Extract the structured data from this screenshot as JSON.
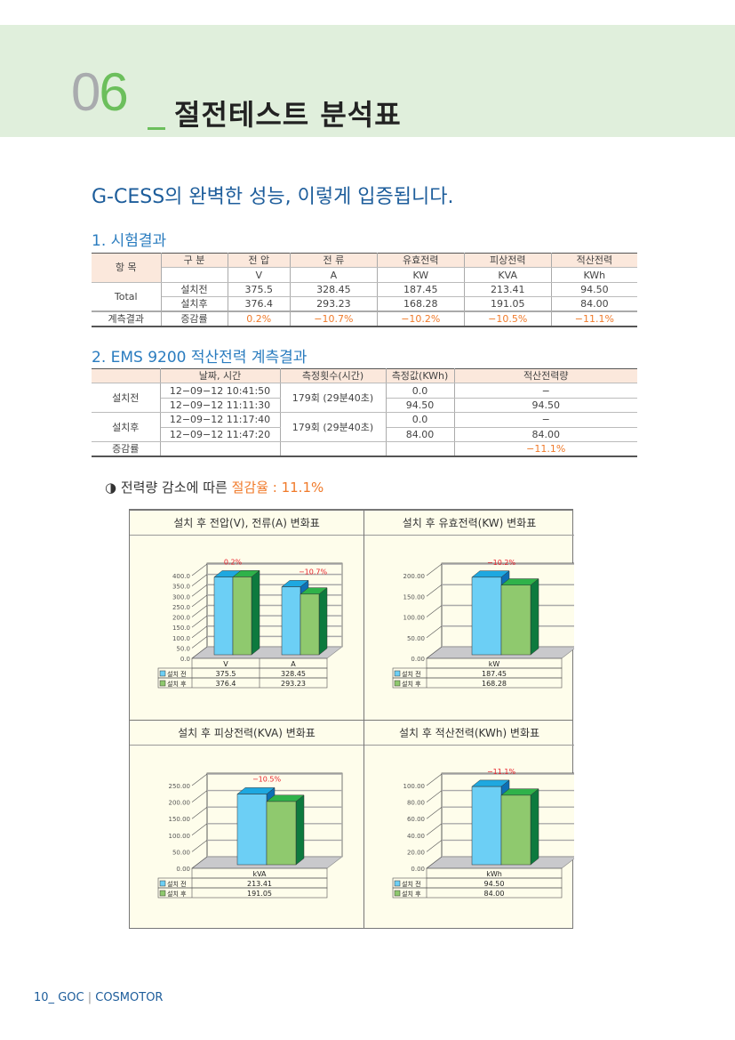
{
  "header": {
    "num_first": "0",
    "num_second": "6",
    "title": "절전테스트 분석표"
  },
  "subheading": "G-CESS의 완벽한 성능, 이렇게 입증됩니다.",
  "section1": {
    "title": "1. 시험결과",
    "head1": [
      "항 목",
      "구 분",
      "전 압",
      "전 류",
      "유효전력",
      "피상전력",
      "적산전력"
    ],
    "units": [
      "V",
      "A",
      "KW",
      "KVA",
      "KWh"
    ],
    "total_label": "Total",
    "rows": [
      {
        "label": "설치전",
        "values": [
          "375.5",
          "328.45",
          "187.45",
          "213.41",
          "94.50"
        ]
      },
      {
        "label": "설치후",
        "values": [
          "376.4",
          "293.23",
          "168.28",
          "191.05",
          "84.00"
        ]
      }
    ],
    "result_label": "계측결과",
    "change_label": "증감률",
    "changes": [
      "0.2%",
      "−10.7%",
      "−10.2%",
      "−10.5%",
      "−11.1%"
    ]
  },
  "section2": {
    "title": "2. EMS 9200 적산전력 계측결과",
    "head": [
      "",
      "날짜, 시간",
      "측정횟수(시간)",
      "측정값(KWh)",
      "적산전력량"
    ],
    "groups": [
      {
        "label": "설치전",
        "count": "179회 (29분40초)",
        "rows": [
          [
            "12−09−12 10:41:50",
            "0.0",
            "−"
          ],
          [
            "12−09−12 11:11:30",
            "94.50",
            "94.50"
          ]
        ]
      },
      {
        "label": "설치후",
        "count": "179회 (29분40초)",
        "rows": [
          [
            "12−09−12 11:17:40",
            "0.0",
            "−"
          ],
          [
            "12−09−12 11:47:20",
            "84.00",
            "84.00"
          ]
        ]
      }
    ],
    "change_label": "증감률",
    "change": "−11.1%"
  },
  "rate": {
    "icon": "half-circle-icon",
    "text": "전력량 감소에 따른 ",
    "highlight": "절감율 : 11.1%"
  },
  "colors": {
    "before": "#6ccff5",
    "before_top": "#1ea8e0",
    "before_side": "#0d6fb5",
    "after": "#8fc96e",
    "after_top": "#2fb24a",
    "after_side": "#0d7a3e",
    "label": "#e8202a",
    "accent": "#f07a2a"
  },
  "chart_data": [
    {
      "type": "bar",
      "title": "설치 후 전압(V), 전류(A) 변화표",
      "categories": [
        "V",
        "A"
      ],
      "series": [
        {
          "name": "설치 전",
          "values": [
            375.5,
            328.45
          ],
          "labels": [
            "375.5",
            "328.45"
          ]
        },
        {
          "name": "설치 후",
          "values": [
            376.4,
            293.23
          ],
          "labels": [
            "376.4",
            "293.23"
          ]
        }
      ],
      "annotations": [
        "0.2%",
        "−10.7%"
      ],
      "ylim": [
        0,
        400
      ],
      "ticks": [
        "0.0",
        "50.0",
        "100.0",
        "150.0",
        "200.0",
        "250.0",
        "300.0",
        "350.0",
        "400.0"
      ],
      "grid": true
    },
    {
      "type": "bar",
      "title": "설치 후 유효전력(KW) 변화표",
      "categories": [
        "kW"
      ],
      "series": [
        {
          "name": "설치 전",
          "values": [
            187.45
          ],
          "labels": [
            "187.45"
          ]
        },
        {
          "name": "설치 후",
          "values": [
            168.28
          ],
          "labels": [
            "168.28"
          ]
        }
      ],
      "annotations": [
        "−10.2%"
      ],
      "ylim": [
        0,
        200
      ],
      "ticks": [
        "0.00",
        "50.00",
        "100.00",
        "150.00",
        "200.00"
      ],
      "grid": true
    },
    {
      "type": "bar",
      "title": "설치 후 피상전력(KVA) 변화표",
      "categories": [
        "kVA"
      ],
      "series": [
        {
          "name": "설치 전",
          "values": [
            213.41
          ],
          "labels": [
            "213.41"
          ]
        },
        {
          "name": "설치 후",
          "values": [
            191.05
          ],
          "labels": [
            "191.05"
          ]
        }
      ],
      "annotations": [
        "−10.5%"
      ],
      "ylim": [
        0,
        250
      ],
      "ticks": [
        "0.00",
        "50.00",
        "100.00",
        "150.00",
        "200.00",
        "250.00"
      ],
      "grid": true
    },
    {
      "type": "bar",
      "title": "설치 후 적산전력(KWh) 변화표",
      "categories": [
        "kWh"
      ],
      "series": [
        {
          "name": "설치 전",
          "values": [
            94.5
          ],
          "labels": [
            "94.50"
          ]
        },
        {
          "name": "설치 후",
          "values": [
            84.0
          ],
          "labels": [
            "84.00"
          ]
        }
      ],
      "annotations": [
        "−11.1%"
      ],
      "ylim": [
        0,
        100
      ],
      "ticks": [
        "0.00",
        "20.00",
        "40.00",
        "60.00",
        "80.00",
        "100.00"
      ],
      "grid": true
    }
  ],
  "footer": {
    "page": "10_",
    "brand1": "GOC",
    "sep": "|",
    "brand2": "COSMOTOR"
  }
}
